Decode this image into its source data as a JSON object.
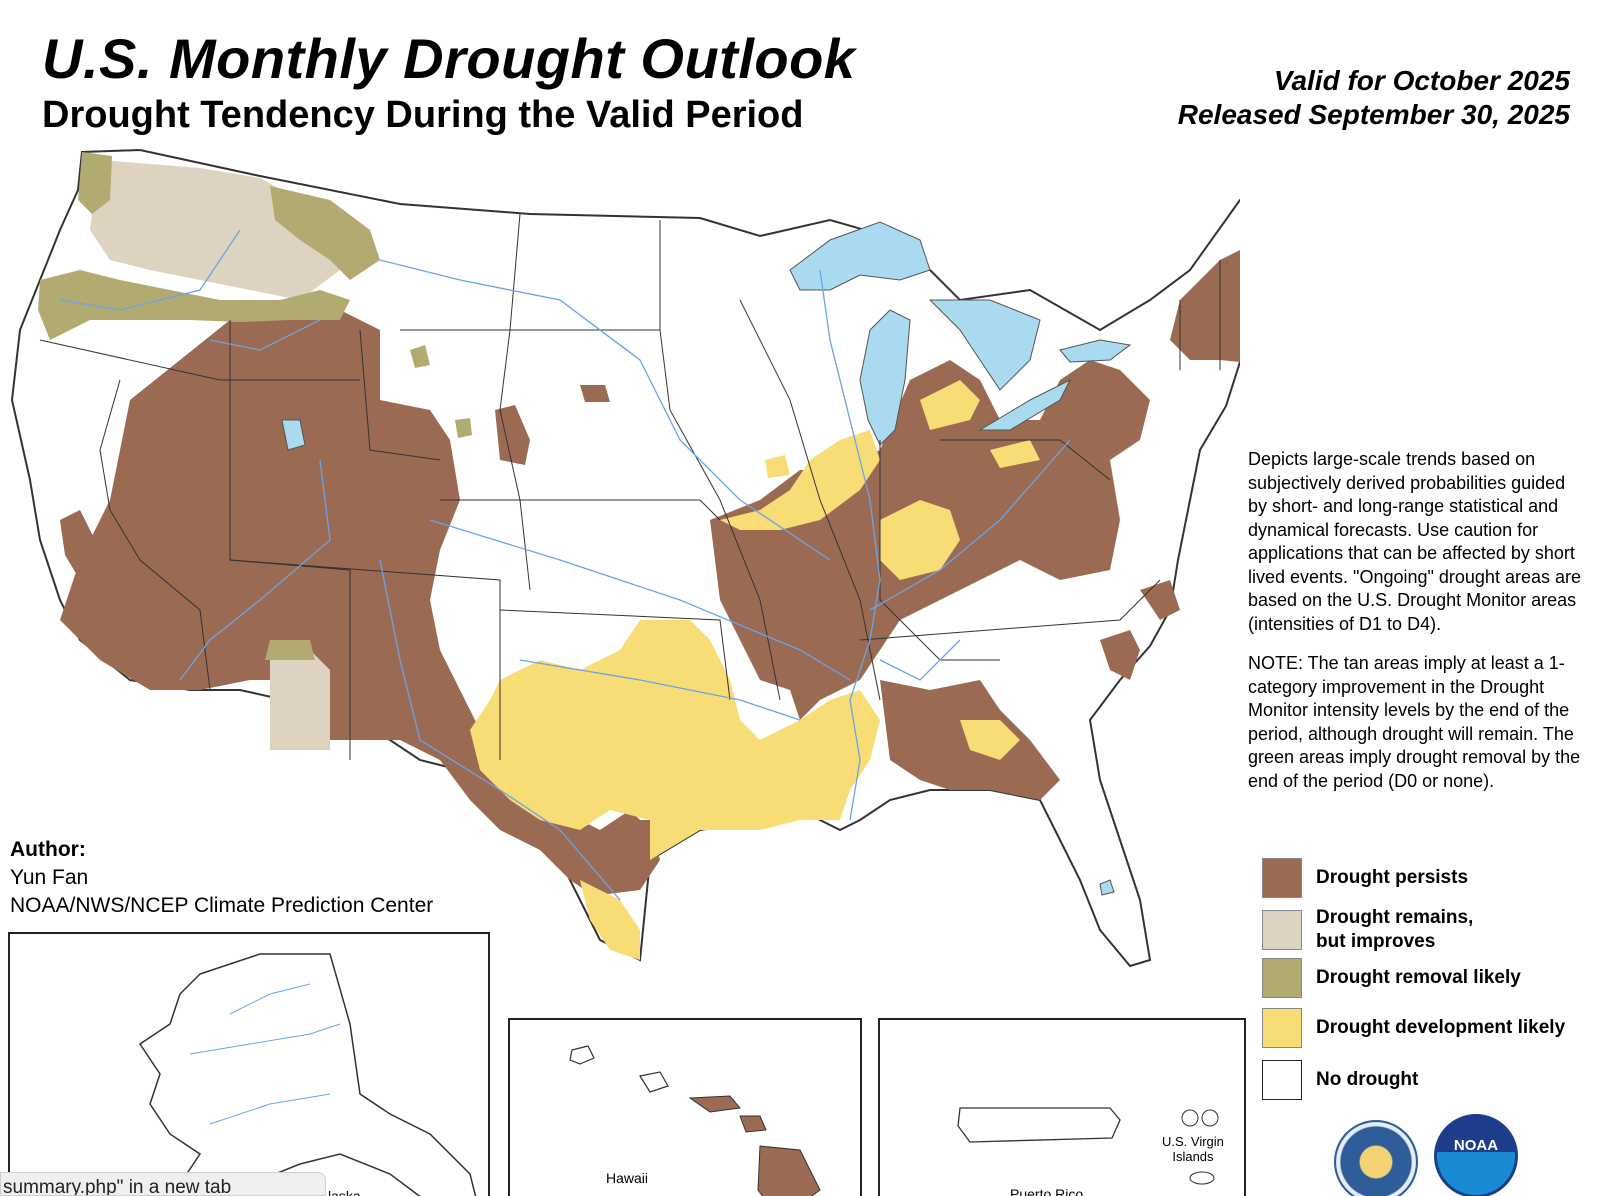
{
  "header": {
    "title": "U.S. Monthly Drought Outlook",
    "subtitle": "Drought Tendency During the Valid Period",
    "valid_for": "Valid for October 2025",
    "released": "Released September 30, 2025"
  },
  "description": {
    "paragraph1": "Depicts large-scale trends based on subjectively derived probabilities guided by short- and long-range statistical and dynamical forecasts. Use caution for applications that can be affected by short lived events. \"Ongoing\" drought areas are based on the U.S. Drought Monitor areas (intensities of D1 to D4).",
    "paragraph2": "NOTE: The tan areas imply at least a 1-category improvement in the Drought Monitor intensity levels by the end of the period, although drought will remain. The green areas imply drought removal by the end of the period (D0 or none)."
  },
  "legend": [
    {
      "label": "Drought persists",
      "color": "#9b6a52"
    },
    {
      "label": "Drought remains,\nbut improves",
      "color": "#ddd3c0"
    },
    {
      "label": "Drought removal likely",
      "color": "#b1ab72"
    },
    {
      "label": "Drought development likely",
      "color": "#f8dc76"
    },
    {
      "label": "No drought",
      "color": "#ffffff"
    }
  ],
  "author": {
    "heading": "Author:",
    "name": "Yun Fan",
    "organization": "NOAA/NWS/NCEP Climate Prediction Center"
  },
  "insets": {
    "alaska_label": "laska",
    "hawaii_label": "Hawaii",
    "puerto_rico_label": "Puerto Rico",
    "virgin_islands_label": "U.S. Virgin\nIslands"
  },
  "logos": {
    "doc": "department-of-commerce-seal",
    "noaa": "NOAA"
  },
  "status_tooltip": "summary.php\" in a new tab",
  "colors": {
    "persists": "#9b6a52",
    "improves": "#ddd3c0",
    "removal": "#b1ab72",
    "development": "#f8dc76",
    "water": "#a9daf0",
    "rivers": "#6aa4e6",
    "boundary": "#333333"
  }
}
